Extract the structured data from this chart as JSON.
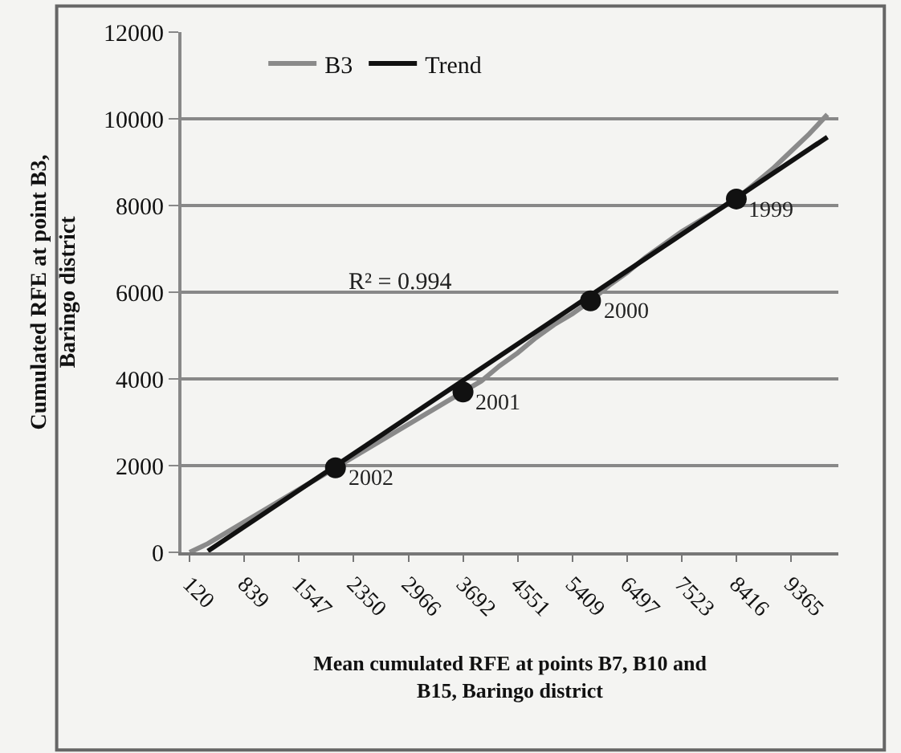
{
  "chart_data": {
    "type": "line",
    "xlabel": "Mean cumulated RFE at points B7, B10 and B15, Baringo district",
    "ylabel": "Cumulated RFE at point B3, Baringo district",
    "categories": [
      "120",
      null,
      null,
      "839",
      null,
      null,
      "1547",
      null,
      null,
      "2350",
      null,
      null,
      "2966",
      null,
      null,
      "3692",
      null,
      null,
      "4551",
      null,
      null,
      "5409",
      null,
      null,
      "6497",
      null,
      null,
      "7523",
      null,
      null,
      "8416",
      null,
      null,
      "9365",
      null,
      null
    ],
    "series": [
      {
        "name": "B3",
        "color": "#8a8a8a",
        "values": [
          0,
          200,
          450,
          700,
          950,
          1200,
          1450,
          1700,
          1950,
          2200,
          2450,
          2700,
          2950,
          3200,
          3450,
          3700,
          3950,
          4300,
          4600,
          4950,
          5250,
          5500,
          5800,
          6150,
          6450,
          6800,
          7100,
          7400,
          7650,
          7900,
          8150,
          8500,
          8850,
          9250,
          9650,
          10100
        ]
      },
      {
        "name": "Trend",
        "color": "#111111",
        "values": [
          null,
          30,
          null,
          null,
          null,
          null,
          null,
          null,
          null,
          null,
          null,
          null,
          null,
          null,
          null,
          null,
          null,
          null,
          null,
          null,
          null,
          null,
          null,
          null,
          null,
          null,
          null,
          null,
          null,
          null,
          null,
          null,
          null,
          null,
          null,
          9580
        ]
      },
      {
        "type": "scatter",
        "marker": "circle",
        "color": "#111111",
        "values": [
          null,
          null,
          null,
          null,
          null,
          null,
          null,
          null,
          1950,
          null,
          null,
          null,
          null,
          null,
          null,
          3700,
          null,
          null,
          null,
          null,
          null,
          null,
          5800,
          null,
          null,
          null,
          null,
          null,
          null,
          null,
          8150,
          null,
          null,
          null,
          null,
          null
        ]
      }
    ],
    "annotations": [
      "2002",
      "2001",
      "2000",
      "1999",
      "R² = 0.994"
    ],
    "ylim": [
      0,
      12000
    ],
    "yticks": [
      0,
      2000,
      4000,
      6000,
      8000,
      10000,
      12000
    ],
    "grid": "y",
    "legend": "top left"
  }
}
